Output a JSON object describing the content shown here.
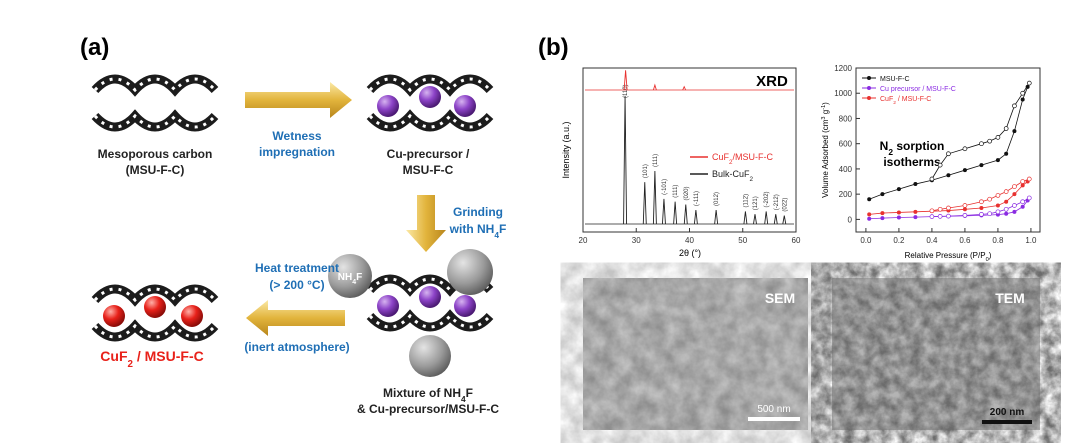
{
  "panel_a": {
    "label": "(a)",
    "mesoporous_carbon": [
      "Mesoporous carbon",
      "(MSU-F-C)"
    ],
    "impregnation": [
      "Wetness",
      "impregnation"
    ],
    "cu_precursor": [
      "Cu-precursor /",
      "MSU-F-C"
    ],
    "grinding": [
      "Grinding",
      [
        "with NH",
        "4",
        "F"
      ]
    ],
    "nh4f": [
      "NH",
      "4",
      "F"
    ],
    "mixture": [
      [
        "Mixture of NH",
        "4",
        "F"
      ],
      "& Cu-precursor/MSU-F-C"
    ],
    "heat": [
      "Heat treatment",
      "(> 200 °C)",
      "(inert atmosphere)"
    ],
    "product": [
      "CuF",
      "2",
      " / MSU-F-C"
    ]
  },
  "panel_b": {
    "label": "(b)",
    "xrd": {
      "title": "XRD",
      "x_label": "2θ (°)",
      "y_label": "Intensity (a.u.)",
      "xlim": [
        20,
        60
      ],
      "xticks": [
        20,
        30,
        40,
        50,
        60
      ],
      "ylim": [
        0,
        100
      ],
      "legend": [
        {
          "name": [
            "CuF",
            "2",
            "/MSU-F-C"
          ],
          "color": "#e8312f"
        },
        {
          "name": [
            "Bulk-CuF",
            "2"
          ],
          "color": "#222222"
        }
      ],
      "composite_peaks": [
        {
          "x": 28,
          "height": 12
        },
        {
          "x": 33.5,
          "height": 3
        },
        {
          "x": 39,
          "height": 2
        }
      ],
      "bulk_peaks": [
        {
          "x": 27.9,
          "height": 92,
          "label": "(110)"
        },
        {
          "x": 31.6,
          "height": 30,
          "label": "(101)"
        },
        {
          "x": 33.5,
          "height": 38,
          "label": "(111)"
        },
        {
          "x": 35.2,
          "height": 18,
          "label": "(-101)"
        },
        {
          "x": 37.3,
          "height": 16,
          "label": "(111)"
        },
        {
          "x": 39.3,
          "height": 14,
          "label": "(020)"
        },
        {
          "x": 41.2,
          "height": 10,
          "label": "(-111)"
        },
        {
          "x": 45.0,
          "height": 10,
          "label": "(012)"
        },
        {
          "x": 50.5,
          "height": 9,
          "label": "(112)"
        },
        {
          "x": 52.3,
          "height": 7,
          "label": "(121)"
        },
        {
          "x": 54.4,
          "height": 9,
          "label": "(-202)"
        },
        {
          "x": 56.2,
          "height": 7,
          "label": "(-212)"
        },
        {
          "x": 57.8,
          "height": 6,
          "label": "(022)"
        }
      ]
    },
    "sorption": {
      "annotation": [
        [
          "N",
          "2",
          " sorption"
        ],
        "isotherms"
      ],
      "x_label": [
        "Relative Pressure (P/P",
        "0",
        ")"
      ],
      "y_label": [
        "Volume Adsorbed (cm",
        "3",
        " g",
        "-1",
        ")"
      ],
      "xlim": [
        -0.06,
        1.055
      ],
      "ylim": [
        -100,
        1200
      ],
      "xticks": [
        {
          "value": 0,
          "label": "0.0"
        },
        0.2,
        0.4,
        0.6,
        0.8,
        {
          "value": 1,
          "label": "1.0"
        }
      ],
      "yticks": [
        0,
        200,
        400,
        600,
        800,
        1000,
        1200
      ],
      "x": [
        0.02,
        0.1,
        0.2,
        0.3,
        0.4,
        0.5,
        0.6,
        0.7,
        0.8,
        0.85,
        0.9,
        0.95,
        0.98,
        0.99
      ],
      "desorption_x": [
        0.99,
        0.95,
        0.9,
        0.85,
        0.8,
        0.75,
        0.7,
        0.6,
        0.5,
        0.45,
        0.4
      ],
      "series": [
        {
          "name": [
            "MSU-F-C"
          ],
          "color": "#111111",
          "values": [
            160,
            200,
            240,
            280,
            310,
            350,
            390,
            430,
            470,
            520,
            700,
            950,
            1050,
            1080
          ],
          "desorption": [
            1080,
            1000,
            900,
            720,
            650,
            620,
            600,
            560,
            520,
            430,
            320
          ]
        },
        {
          "name": [
            "Cu precursor / MSU-F-C"
          ],
          "color": "#8a2be2",
          "values": [
            5,
            10,
            15,
            18,
            22,
            25,
            28,
            32,
            38,
            45,
            60,
            100,
            150,
            170
          ],
          "desorption": [
            170,
            140,
            110,
            80,
            60,
            45,
            40,
            32,
            26,
            24,
            22
          ]
        },
        {
          "name": [
            "CuF",
            "2",
            " / MSU-F-C"
          ],
          "color": "#e8312f",
          "values": [
            40,
            50,
            55,
            60,
            65,
            70,
            80,
            90,
            110,
            140,
            200,
            270,
            300,
            320
          ],
          "desorption": [
            320,
            300,
            260,
            220,
            190,
            160,
            140,
            110,
            90,
            80,
            68
          ]
        }
      ]
    },
    "sem": {
      "label": "SEM",
      "scale": "500 nm"
    },
    "tem": {
      "label": "TEM",
      "scale": "200 nm"
    }
  }
}
